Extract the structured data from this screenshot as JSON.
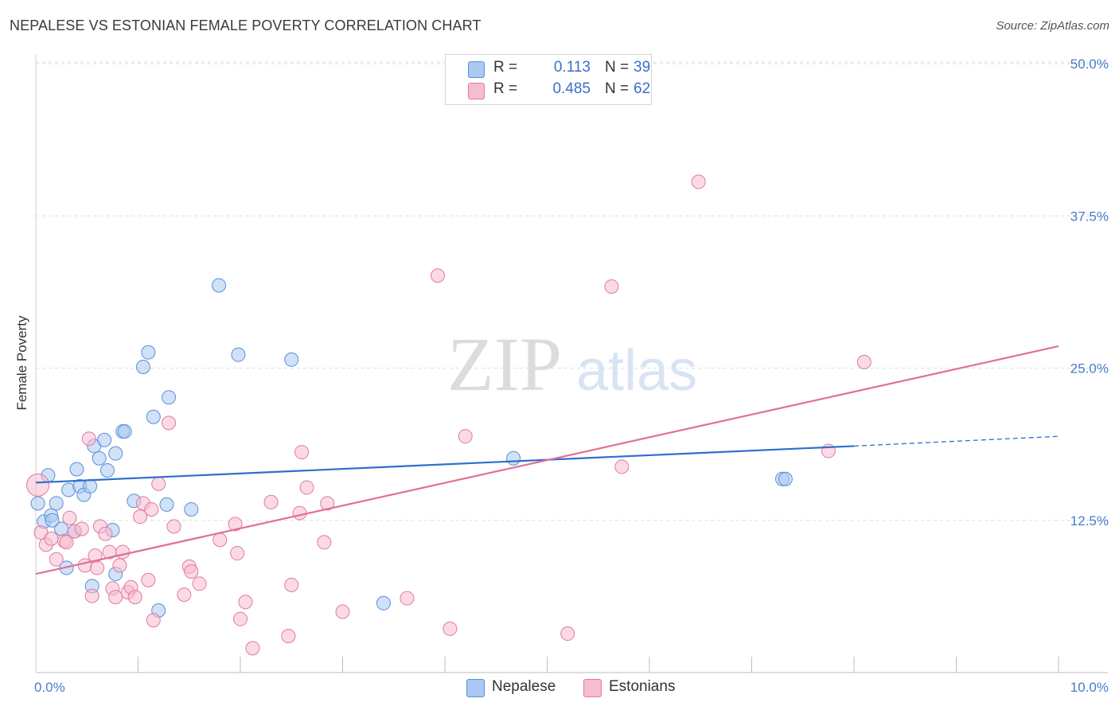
{
  "title": "NEPALESE VS ESTONIAN FEMALE POVERTY CORRELATION CHART",
  "source": "Source: ZipAtlas.com",
  "watermark": {
    "zip": "ZIP",
    "atlas": "atlas"
  },
  "legend": {
    "r_label": "R =",
    "n_label": "N =",
    "rows": [
      {
        "r": "0.113",
        "n": "39",
        "color": "#a9c8f2",
        "border": "#5b8fd6"
      },
      {
        "r": "0.485",
        "n": "62",
        "color": "#f8bcd0",
        "border": "#e07aa0"
      }
    ]
  },
  "bottom_legend": [
    {
      "label": "Nepalese",
      "color": "#a9c8f2",
      "border": "#5b8fd6"
    },
    {
      "label": "Estonians",
      "color": "#f8bcd0",
      "border": "#e07aa0"
    }
  ],
  "chart_data": {
    "type": "scatter",
    "title": "NEPALESE VS ESTONIAN FEMALE POVERTY CORRELATION CHART",
    "xlabel": "",
    "ylabel": "Female Poverty",
    "xlim": [
      0,
      10
    ],
    "ylim": [
      0,
      50
    ],
    "x_tick_labels": [
      "0.0%",
      "10.0%"
    ],
    "y_ticks": [
      12.5,
      25.0,
      37.5,
      50.0
    ],
    "y_tick_labels": [
      "12.5%",
      "25.0%",
      "37.5%",
      "50.0%"
    ],
    "grid": "horizontal dashed",
    "legend_placement": "top-center",
    "series": [
      {
        "name": "Nepalese",
        "color": "#5b8fd6",
        "fill": "#a9c8f2",
        "trend": {
          "x": [
            0.0,
            8.0
          ],
          "y": [
            15.6,
            18.6
          ],
          "dashed_to": [
            10.0,
            19.4
          ]
        },
        "points": [
          [
            0.02,
            13.9
          ],
          [
            0.08,
            12.4
          ],
          [
            0.12,
            16.2
          ],
          [
            0.15,
            12.9
          ],
          [
            0.2,
            13.9
          ],
          [
            0.25,
            11.8
          ],
          [
            0.3,
            8.6
          ],
          [
            0.32,
            15.0
          ],
          [
            0.38,
            11.6
          ],
          [
            0.4,
            16.7
          ],
          [
            0.43,
            15.3
          ],
          [
            0.47,
            14.6
          ],
          [
            0.53,
            15.3
          ],
          [
            0.55,
            7.1
          ],
          [
            0.57,
            18.6
          ],
          [
            0.62,
            17.6
          ],
          [
            0.67,
            19.1
          ],
          [
            0.7,
            16.6
          ],
          [
            0.75,
            11.7
          ],
          [
            0.78,
            18.0
          ],
          [
            0.78,
            8.1
          ],
          [
            0.85,
            19.8
          ],
          [
            0.87,
            19.8
          ],
          [
            0.96,
            14.1
          ],
          [
            1.05,
            25.1
          ],
          [
            1.1,
            26.3
          ],
          [
            1.15,
            21.0
          ],
          [
            1.2,
            5.1
          ],
          [
            1.28,
            13.8
          ],
          [
            1.3,
            22.6
          ],
          [
            1.52,
            13.4
          ],
          [
            1.79,
            31.8
          ],
          [
            1.98,
            26.1
          ],
          [
            2.5,
            25.7
          ],
          [
            3.4,
            5.7
          ],
          [
            4.67,
            17.6
          ],
          [
            7.3,
            15.9
          ],
          [
            7.33,
            15.9
          ],
          [
            0.16,
            12.5
          ]
        ]
      },
      {
        "name": "Estonians",
        "color": "#e07aa0",
        "fill": "#f8bcd0",
        "trend": {
          "x": [
            0.0,
            10.0
          ],
          "y": [
            8.1,
            26.8
          ]
        },
        "points": [
          [
            0.02,
            15.4
          ],
          [
            0.05,
            11.5
          ],
          [
            0.1,
            10.5
          ],
          [
            0.15,
            11.0
          ],
          [
            0.2,
            9.3
          ],
          [
            0.28,
            10.8
          ],
          [
            0.3,
            10.7
          ],
          [
            0.33,
            12.7
          ],
          [
            0.38,
            11.6
          ],
          [
            0.45,
            11.8
          ],
          [
            0.48,
            8.8
          ],
          [
            0.52,
            19.2
          ],
          [
            0.55,
            6.3
          ],
          [
            0.58,
            9.6
          ],
          [
            0.6,
            8.6
          ],
          [
            0.63,
            12.0
          ],
          [
            0.68,
            11.4
          ],
          [
            0.72,
            9.9
          ],
          [
            0.75,
            6.9
          ],
          [
            0.78,
            6.2
          ],
          [
            0.82,
            8.8
          ],
          [
            0.85,
            9.9
          ],
          [
            0.9,
            6.6
          ],
          [
            0.93,
            7.0
          ],
          [
            0.97,
            6.2
          ],
          [
            1.02,
            12.8
          ],
          [
            1.05,
            13.9
          ],
          [
            1.1,
            7.6
          ],
          [
            1.13,
            13.4
          ],
          [
            1.15,
            4.3
          ],
          [
            1.2,
            15.5
          ],
          [
            1.3,
            20.5
          ],
          [
            1.35,
            12.0
          ],
          [
            1.45,
            6.4
          ],
          [
            1.5,
            8.7
          ],
          [
            1.52,
            8.3
          ],
          [
            1.6,
            7.3
          ],
          [
            1.8,
            10.9
          ],
          [
            1.95,
            12.2
          ],
          [
            1.97,
            9.8
          ],
          [
            2.0,
            4.4
          ],
          [
            2.05,
            5.8
          ],
          [
            2.12,
            2.0
          ],
          [
            2.3,
            14.0
          ],
          [
            2.47,
            3.0
          ],
          [
            2.5,
            7.2
          ],
          [
            2.58,
            13.1
          ],
          [
            2.6,
            18.1
          ],
          [
            2.65,
            15.2
          ],
          [
            2.82,
            10.7
          ],
          [
            2.85,
            13.9
          ],
          [
            3.0,
            5.0
          ],
          [
            3.63,
            6.1
          ],
          [
            3.93,
            32.6
          ],
          [
            4.05,
            3.6
          ],
          [
            4.2,
            19.4
          ],
          [
            5.2,
            3.2
          ],
          [
            5.63,
            31.7
          ],
          [
            5.73,
            16.9
          ],
          [
            6.48,
            40.3
          ],
          [
            7.75,
            18.2
          ],
          [
            8.1,
            25.5
          ]
        ]
      }
    ]
  }
}
